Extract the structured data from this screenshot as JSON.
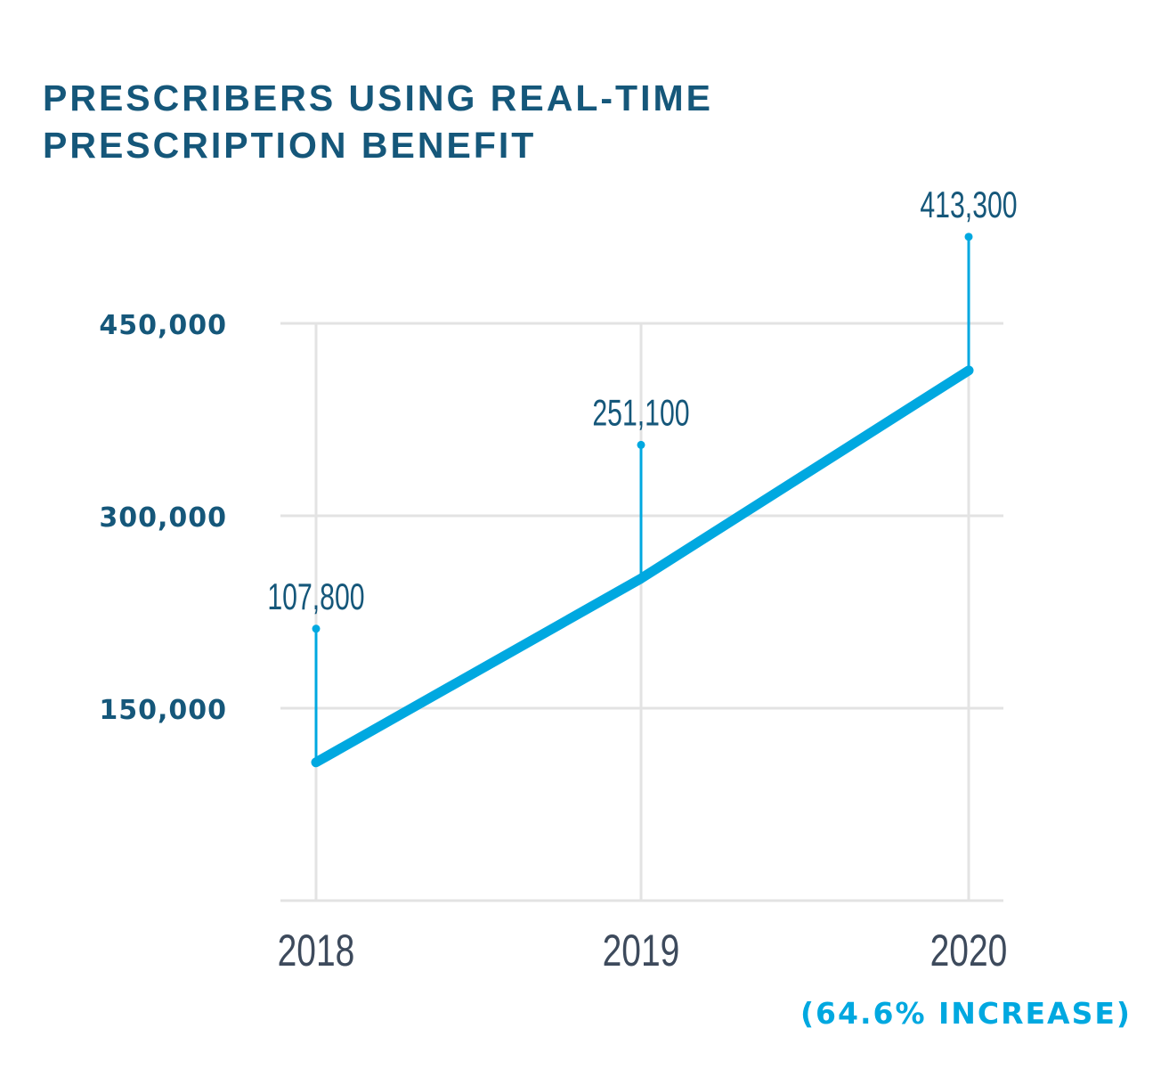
{
  "chart_data": {
    "type": "line",
    "title": "PRESCRIBERS USING REAL-TIME PRESCRIPTION BENEFIT",
    "title_lines": [
      "PRESCRIBERS USING REAL-TIME",
      "PRESCRIPTION BENEFIT"
    ],
    "categories": [
      "2018",
      "2019",
      "2020"
    ],
    "values": [
      107800,
      251100,
      413300
    ],
    "data_labels": [
      "107,800",
      "251,100",
      "413,300"
    ],
    "yticks": [
      150000,
      300000,
      450000
    ],
    "ytick_labels": [
      "150,000",
      "300,000",
      "450,000"
    ],
    "ylim": [
      0,
      450000
    ],
    "grid": true,
    "annotation": "(64.6% INCREASE)",
    "colors": {
      "title": "#15577a",
      "line": "#00a8e0",
      "grid": "#e3e3e3",
      "xtick": "#3d4a5c"
    }
  }
}
